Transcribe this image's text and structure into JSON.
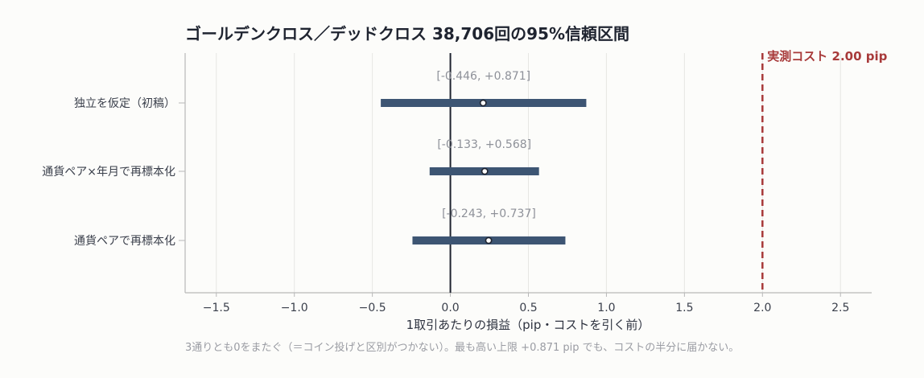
{
  "chart_data": {
    "type": "forest",
    "title": "ゴールデンクロス／デッドクロス 38,706回の95%信頼区間",
    "xlabel": "1取引あたりの損益（pip・コストを引く前）",
    "note": "3通りとも0をまたぐ（＝コイン投げと区別がつかない）。最も高い上限 +0.871 pip でも、コストの半分に届かない。",
    "xlim": [
      -1.7,
      2.7
    ],
    "xticks": [
      -1.5,
      -1.0,
      -0.5,
      0.0,
      0.5,
      1.0,
      1.5,
      2.0,
      2.5
    ],
    "xtick_labels": [
      "−1.5",
      "−1.0",
      "−0.5",
      "0.0",
      "0.5",
      "1.0",
      "1.5",
      "2.0",
      "2.5"
    ],
    "grid": "vertical",
    "rows": [
      {
        "label": "独立を仮定（初稿）",
        "lower": -0.446,
        "upper": 0.871,
        "point": 0.21,
        "ci_text": "[-0.446, +0.871]"
      },
      {
        "label": "通貨ペア×年月で再標本化",
        "lower": -0.133,
        "upper": 0.568,
        "point": 0.22,
        "ci_text": "[-0.133, +0.568]"
      },
      {
        "label": "通貨ペアで再標本化",
        "lower": -0.243,
        "upper": 0.737,
        "point": 0.245,
        "ci_text": "[-0.243, +0.737]"
      }
    ],
    "reference_line": {
      "x": 0.0
    },
    "cost_line": {
      "x": 2.0,
      "label": "実測コスト 2.00 pip"
    }
  },
  "colors": {
    "interval": "#3d5573",
    "cost": "#a83a3a",
    "zero": "#1f2430",
    "grid": "#e6e6e3",
    "axis": "#b8b8b8"
  }
}
